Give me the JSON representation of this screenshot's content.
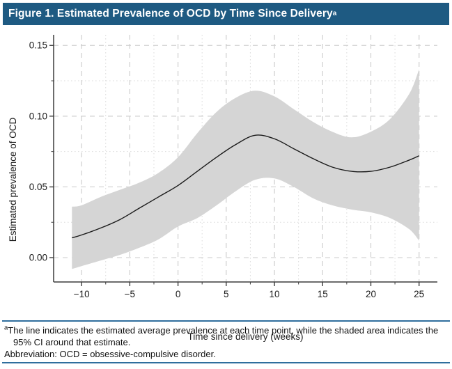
{
  "header": {
    "title": "Figure 1. Estimated Prevalence of OCD by Time Since Delivery",
    "superscript": "a"
  },
  "footnotes": {
    "note_marker": "a",
    "note_text": "The line indicates the estimated average prevalence at each time point, while the shaded area indicates the 95% CI around that estimate.",
    "abbreviation": "Abbreviation: OCD = obsessive-compulsive disorder."
  },
  "colors": {
    "header_bg": "#1e5a82",
    "header_text": "#ffffff",
    "rule_blue": "#2f6e9d",
    "ci_band": "#d5d5d5",
    "mean_line": "#1a1a1a",
    "grid_major": "#cfcfcf",
    "grid_minor": "#dbdbdb",
    "axis": "#3c3c3c"
  },
  "chart_data": {
    "type": "line",
    "title": "Estimated Prevalence of OCD by Time Since Delivery",
    "x_label": "Time since delivery (weeks)",
    "y_label": "Estimated prevalence of OCD",
    "x": [
      -11,
      -10,
      -8,
      -6,
      -4,
      -2,
      0,
      2,
      4,
      6,
      8,
      10,
      12,
      14,
      16,
      18,
      20,
      22,
      24,
      25
    ],
    "series": [
      {
        "name": "Estimated average prevalence",
        "values": [
          0.014,
          0.016,
          0.021,
          0.027,
          0.035,
          0.043,
          0.051,
          0.061,
          0.071,
          0.08,
          0.0865,
          0.084,
          0.077,
          0.07,
          0.064,
          0.061,
          0.061,
          0.064,
          0.069,
          0.072
        ]
      }
    ],
    "ci_level": "95% CI",
    "ci_lower": [
      -0.008,
      -0.006,
      -0.002,
      0.002,
      0.007,
      0.013,
      0.022,
      0.028,
      0.037,
      0.047,
      0.055,
      0.056,
      0.05,
      0.042,
      0.037,
      0.034,
      0.032,
      0.028,
      0.02,
      0.012
    ],
    "ci_upper": [
      0.036,
      0.037,
      0.043,
      0.048,
      0.053,
      0.06,
      0.071,
      0.088,
      0.103,
      0.113,
      0.118,
      0.114,
      0.105,
      0.096,
      0.089,
      0.085,
      0.089,
      0.098,
      0.116,
      0.133
    ],
    "xlim": [
      -12.9,
      26.9
    ],
    "ylim": [
      -0.0172,
      0.1575
    ],
    "x_ticks": {
      "values": [
        -10,
        -5,
        0,
        5,
        10,
        15,
        20,
        25
      ],
      "labels": [
        "−10",
        "−5",
        "0",
        "5",
        "10",
        "15",
        "20",
        "25"
      ]
    },
    "y_ticks": {
      "values": [
        0.0,
        0.05,
        0.1,
        0.15
      ],
      "labels": [
        "0.00",
        "0.05",
        "0.10",
        "0.15"
      ]
    },
    "x_minor_ticks": [
      -7.5,
      -2.5,
      2.5,
      7.5,
      12.5,
      17.5,
      22.5
    ],
    "y_minor_ticks": [
      0.025,
      0.075,
      0.125
    ],
    "grid": "major gridlines dashed, minor gridlines dotted, left and bottom axes only",
    "legend": "none"
  }
}
